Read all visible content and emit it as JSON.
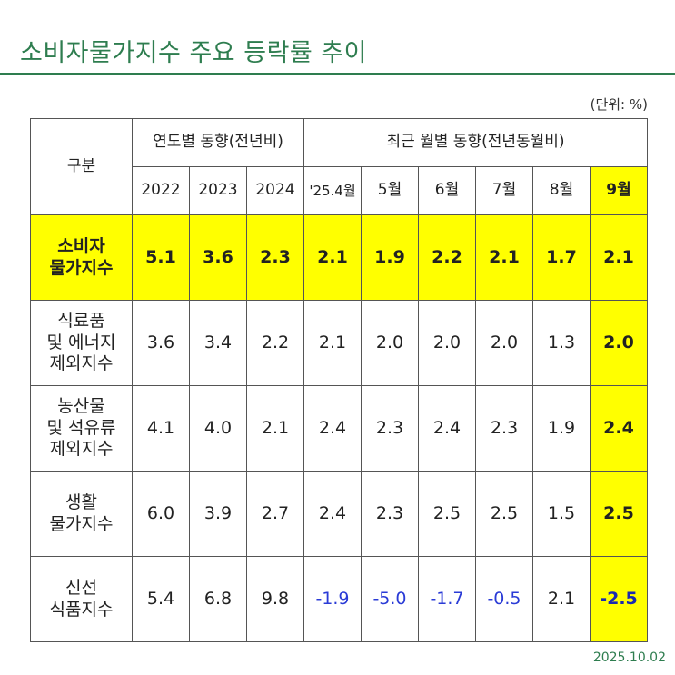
{
  "title": "소비자물가지수 주요 등락률 추이",
  "unit": "(단위: %)",
  "date": "2025.10.02",
  "table": {
    "category_header": "구분",
    "group_yearly": "연도별 동향(전년비)",
    "group_monthly": "최근 월별 동향(전년동월비)",
    "columns": [
      "2022",
      "2023",
      "2024",
      "'25.4월",
      "5월",
      "6월",
      "7월",
      "8월",
      "9월"
    ],
    "rows": [
      {
        "label": [
          "소비자",
          "물가지수"
        ],
        "values": [
          "5.1",
          "3.6",
          "2.3",
          "2.1",
          "1.9",
          "2.2",
          "2.1",
          "1.7",
          "2.1"
        ]
      },
      {
        "label": [
          "식료품",
          "및 에너지",
          "제외지수"
        ],
        "values": [
          "3.6",
          "3.4",
          "2.2",
          "2.1",
          "2.0",
          "2.0",
          "2.0",
          "1.3",
          "2.0"
        ]
      },
      {
        "label": [
          "농산물",
          "및 석유류",
          "제외지수"
        ],
        "values": [
          "4.1",
          "4.0",
          "2.1",
          "2.4",
          "2.3",
          "2.4",
          "2.3",
          "1.9",
          "2.4"
        ]
      },
      {
        "label": [
          "생활",
          "물가지수"
        ],
        "values": [
          "6.0",
          "3.9",
          "2.7",
          "2.4",
          "2.3",
          "2.5",
          "2.5",
          "1.5",
          "2.5"
        ]
      },
      {
        "label": [
          "신선",
          "식품지수"
        ],
        "values": [
          "5.4",
          "6.8",
          "9.8",
          "-1.9",
          "-5.0",
          "-1.7",
          "-0.5",
          "2.1",
          "-2.5"
        ]
      }
    ]
  },
  "colors": {
    "title_green": "#2e7d4f",
    "highlight_yellow": "#ffff00",
    "negative_blue": "#2a3bd6"
  }
}
